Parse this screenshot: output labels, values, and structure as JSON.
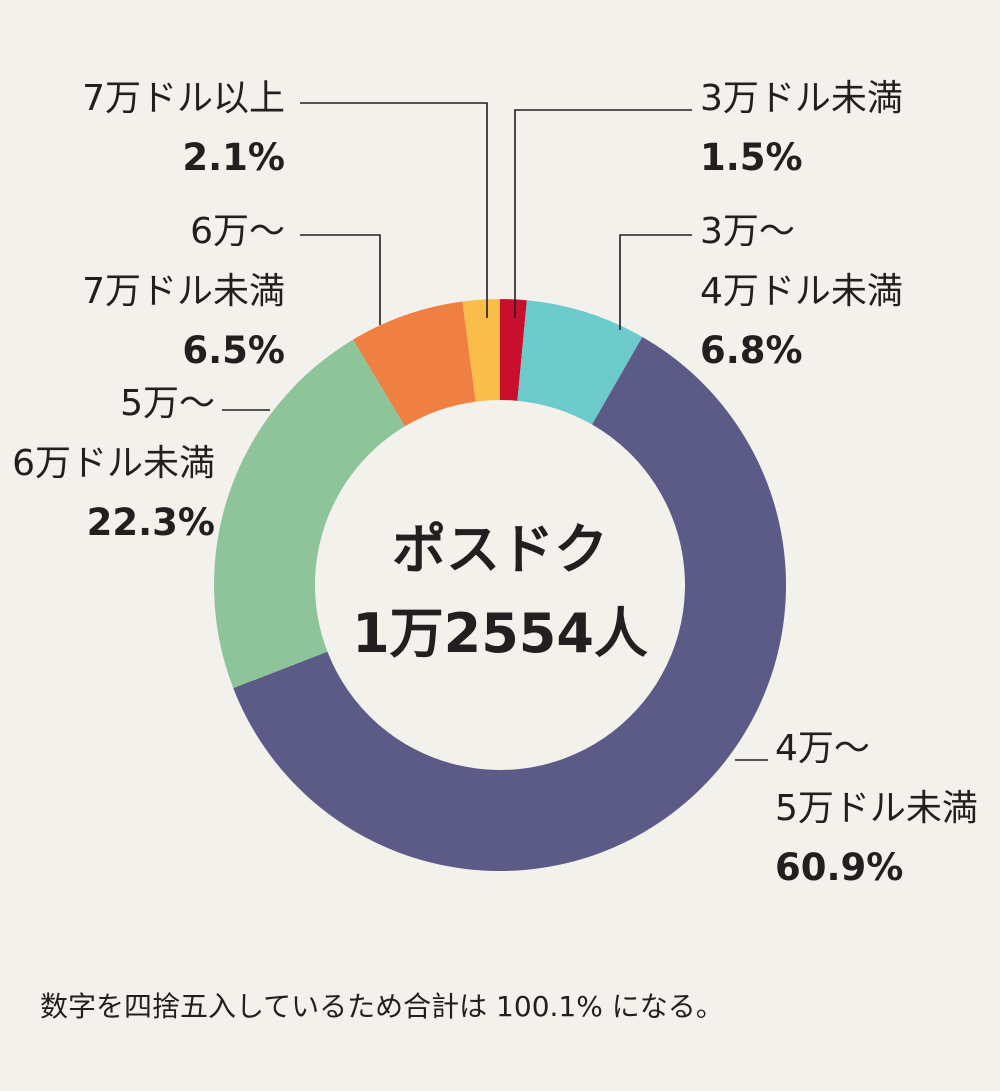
{
  "chart_data": {
    "type": "pie",
    "style": "donut",
    "center_text": [
      "ポスドク",
      "1万2554人"
    ],
    "categories": [
      "3万ドル未満",
      "3万〜4万ドル未満",
      "4万〜5万ドル未満",
      "5万〜6万ドル未満",
      "6万〜7万ドル未満",
      "7万ドル以上"
    ],
    "values": [
      1.5,
      6.8,
      60.9,
      22.3,
      6.5,
      2.1
    ],
    "value_labels": [
      "1.5%",
      "6.8%",
      "60.9%",
      "22.3%",
      "6.5%",
      "2.1%"
    ],
    "label_lines": [
      [
        "3万ドル未満"
      ],
      [
        "3万〜",
        "4万ドル未満"
      ],
      [
        "4万〜",
        "5万ドル未満"
      ],
      [
        "5万〜",
        "6万ドル未満"
      ],
      [
        "6万〜",
        "7万ドル未満"
      ],
      [
        "7万ドル以上"
      ]
    ],
    "colors": [
      "#c8102e",
      "#6ccbca",
      "#5c5a87",
      "#8ec49a",
      "#f07f42",
      "#fbbd4a"
    ],
    "leader_line_color": "#231f20"
  },
  "footnote": "数字を四捨五入しているため合計は 100.1% になる。"
}
